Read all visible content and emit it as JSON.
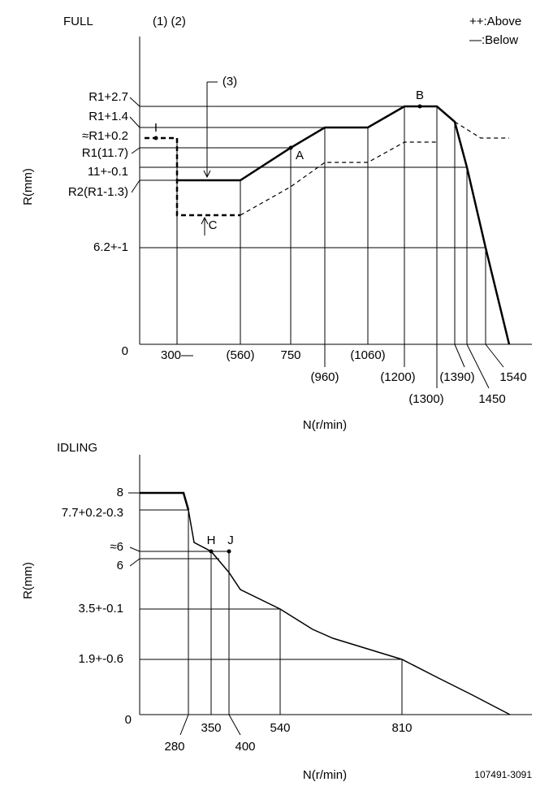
{
  "full": {
    "title": "FULL",
    "notes": "(1) (2)",
    "legend": [
      "++:Above",
      "—:Below"
    ],
    "y_label": "R(mm)",
    "x_label": "N(r/min)",
    "y_ticks": [
      "R1+2.7",
      "R1+1.4",
      "≈R1+0.2",
      "R1(11.7)",
      "11+-0.1",
      "R2(R1-1.3)",
      "6.2+-1",
      "0"
    ],
    "x_ticks": [
      "300—",
      "(560)",
      "750",
      "(960)",
      "(1060)",
      "(1200)",
      "(1300)",
      "(1390)",
      "1450",
      "1540"
    ],
    "markers": [
      "I",
      "A",
      "B",
      "C",
      "(3)"
    ]
  },
  "idling": {
    "title": "IDLING",
    "y_label": "R(mm)",
    "x_label": "N(r/min)",
    "y_ticks": [
      "8",
      "7.7+0.2-0.3",
      "≈6",
      "6",
      "3.5+-0.1",
      "1.9+-0.6",
      "0"
    ],
    "x_ticks": [
      "280",
      "350",
      "400",
      "540",
      "810"
    ],
    "markers": [
      "H",
      "J"
    ]
  },
  "drawing_number": "107491-3091"
}
